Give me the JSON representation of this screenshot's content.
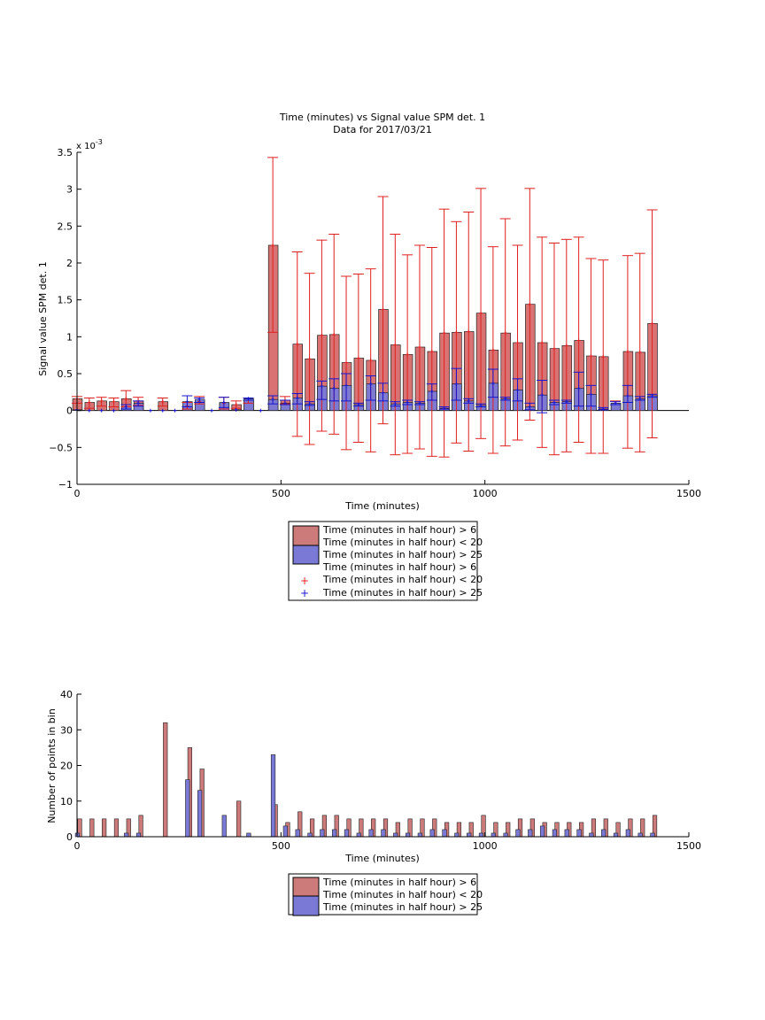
{
  "chart_data": [
    {
      "type": "bar",
      "title": "Time (minutes) vs Signal value SPM det. 1",
      "subtitle": "Data for 2017/03/21",
      "xlabel": "Time (minutes)",
      "ylabel": "Signal value SPM det. 1",
      "exponent_label": "x 10",
      "exponent_power": "-3",
      "xlim": [
        0,
        1500
      ],
      "ylim": [
        -1,
        3.5
      ],
      "xticks": [
        0,
        500,
        1000,
        1500
      ],
      "yticks": [
        -1,
        -0.5,
        0,
        0.5,
        1,
        1.5,
        2,
        2.5,
        3,
        3.5
      ],
      "ytick_labels": [
        "−1",
        "−0.5",
        "0",
        "0.5",
        "1",
        "1.5",
        "2",
        "2.5",
        "3",
        "3.5"
      ],
      "grid": false,
      "legend_position": "below",
      "legend": [
        "Time (minutes in half hour) > 6",
        "Time (minutes in half hour) < 20",
        "Time (minutes in half hour) > 25",
        "Time (minutes in half hour) > 6",
        "Time (minutes in half hour) < 20",
        "Time (minutes in half hour) > 25"
      ],
      "colors": {
        "red_bar": "#d97373",
        "blue_bar": "#7a7ad6",
        "red_err": "#e02020",
        "blue_err": "#1515d0"
      },
      "series": [
        {
          "color": "red",
          "x": [
            0,
            30,
            60,
            90,
            120,
            150,
            180,
            210,
            240,
            270,
            300,
            330,
            360,
            390,
            420,
            450,
            480,
            510,
            540,
            570,
            600,
            630,
            660,
            690,
            720,
            750,
            780,
            810,
            840,
            870,
            900,
            930,
            960,
            990,
            1020,
            1050,
            1080,
            1110,
            1140,
            1170,
            1200,
            1230,
            1260,
            1290,
            1320,
            1350,
            1380,
            1410
          ],
          "values": [
            0.16,
            0.11,
            0.13,
            0.12,
            0.16,
            0.13,
            null,
            0.12,
            null,
            0.06,
            0.12,
            null,
            0.1,
            0.08,
            0.14,
            null,
            2.24,
            0.14,
            0.9,
            0.7,
            1.02,
            1.03,
            0.65,
            0.71,
            0.68,
            1.37,
            0.89,
            0.76,
            0.86,
            0.8,
            1.05,
            1.06,
            1.07,
            1.32,
            0.82,
            1.05,
            0.92,
            1.44,
            0.92,
            0.84,
            0.88,
            0.95,
            0.74,
            0.73,
            0.1,
            0.8,
            0.79,
            1.18
          ],
          "err_low": [
            0.1,
            0.03,
            0.06,
            0.05,
            0.05,
            0.07,
            null,
            0.06,
            null,
            0.02,
            0.09,
            null,
            0.02,
            0.03,
            0.1,
            null,
            1.06,
            0.09,
            -0.35,
            -0.46,
            -0.28,
            -0.32,
            -0.53,
            -0.43,
            -0.56,
            -0.18,
            -0.6,
            -0.58,
            -0.52,
            -0.62,
            -0.63,
            -0.44,
            -0.55,
            -0.38,
            -0.58,
            -0.48,
            -0.4,
            -0.13,
            -0.5,
            -0.6,
            -0.56,
            -0.43,
            -0.58,
            -0.58,
            0.08,
            -0.51,
            -0.56,
            -0.37
          ],
          "err_high": [
            0.19,
            0.17,
            0.18,
            0.17,
            0.27,
            0.18,
            null,
            0.17,
            null,
            0.11,
            0.19,
            null,
            0.18,
            0.13,
            0.17,
            null,
            3.43,
            0.19,
            2.15,
            1.86,
            2.31,
            2.39,
            1.82,
            1.85,
            1.92,
            2.9,
            2.39,
            2.11,
            2.24,
            2.21,
            2.73,
            2.56,
            2.69,
            3.01,
            2.22,
            2.6,
            2.24,
            3.01,
            2.35,
            2.27,
            2.32,
            2.35,
            2.06,
            2.04,
            0.13,
            2.1,
            2.13,
            2.72
          ]
        },
        {
          "color": "blue",
          "x": [
            15,
            45,
            75,
            105,
            135,
            165,
            195,
            225,
            255,
            285,
            315,
            345,
            375,
            405,
            435,
            465,
            495,
            525,
            555,
            585,
            615,
            645,
            675,
            705,
            735,
            765,
            795,
            825,
            855,
            885,
            915,
            945,
            975,
            1005,
            1035,
            1065,
            1095,
            1125,
            1155,
            1185,
            1215,
            1245,
            1275,
            1305,
            1335,
            1365,
            1395,
            1425
          ],
          "values": [
            0.01,
            0,
            0,
            0,
            0.05,
            0.1,
            0,
            0,
            0,
            0.12,
            0.15,
            0,
            0.11,
            0.01,
            0.16,
            0,
            0.15,
            0.1,
            0.17,
            0.09,
            0.33,
            0.3,
            0.34,
            0.08,
            0.36,
            0.24,
            0.09,
            0.11,
            0.1,
            0.26,
            0.03,
            0.36,
            0.13,
            0.07,
            0.37,
            0.16,
            0.28,
            0.05,
            0.21,
            0.11,
            0.12,
            0.3,
            0.22,
            0.02,
            0.1,
            0.2,
            0.16,
            0.2
          ],
          "err_low": [
            null,
            null,
            null,
            null,
            0.02,
            0.06,
            null,
            null,
            null,
            0.05,
            0.11,
            null,
            0.04,
            null,
            0.14,
            null,
            0.09,
            0.08,
            0.09,
            0.07,
            0.15,
            0.13,
            0.13,
            0.06,
            0.14,
            0.13,
            0.06,
            0.08,
            0.08,
            0.14,
            0.02,
            0.14,
            0.1,
            0.05,
            0.18,
            0.14,
            0.13,
            0.01,
            -0.03,
            0.08,
            0.1,
            0.06,
            0.06,
            0.01,
            0.08,
            0.11,
            0.14,
            0.18
          ],
          "err_high": [
            null,
            null,
            null,
            null,
            0.08,
            0.13,
            null,
            null,
            null,
            0.2,
            0.17,
            null,
            0.18,
            null,
            0.17,
            null,
            0.2,
            0.14,
            0.23,
            0.12,
            0.4,
            0.43,
            0.5,
            0.1,
            0.47,
            0.37,
            0.12,
            0.14,
            0.12,
            0.36,
            0.05,
            0.57,
            0.16,
            0.09,
            0.56,
            0.18,
            0.43,
            0.1,
            0.41,
            0.14,
            0.14,
            0.52,
            0.34,
            0.04,
            0.12,
            0.34,
            0.19,
            0.22
          ]
        }
      ]
    },
    {
      "type": "bar",
      "xlabel": "Time (minutes)",
      "ylabel": "Number of points in bin",
      "xlim": [
        0,
        1500
      ],
      "ylim": [
        0,
        40
      ],
      "xticks": [
        0,
        500,
        1000,
        1500
      ],
      "yticks": [
        0,
        10,
        20,
        30,
        40
      ],
      "grid": false,
      "legend_position": "below",
      "legend": [
        "Time (minutes in half hour) > 6",
        "Time (minutes in half hour) < 20",
        "Time (minutes in half hour) > 25"
      ],
      "series": [
        {
          "color": "red",
          "x": [
            0,
            30,
            60,
            90,
            120,
            150,
            180,
            210,
            240,
            270,
            300,
            330,
            360,
            390,
            420,
            450,
            480,
            510,
            540,
            570,
            600,
            630,
            660,
            690,
            720,
            750,
            780,
            810,
            840,
            870,
            900,
            930,
            960,
            990,
            1020,
            1050,
            1080,
            1110,
            1140,
            1170,
            1200,
            1230,
            1260,
            1290,
            1320,
            1350,
            1380,
            1410
          ],
          "values": [
            5,
            5,
            5,
            5,
            5,
            6,
            0,
            32,
            0,
            25,
            19,
            0,
            0,
            10,
            0,
            0,
            9,
            4,
            7,
            5,
            6,
            6,
            5,
            5,
            5,
            5,
            4,
            5,
            5,
            5,
            4,
            4,
            4,
            6,
            4,
            4,
            5,
            5,
            4,
            4,
            4,
            4,
            5,
            5,
            4,
            5,
            5,
            6
          ]
        },
        {
          "color": "blue",
          "x": [
            15,
            45,
            75,
            105,
            135,
            165,
            195,
            225,
            255,
            285,
            315,
            345,
            375,
            405,
            435,
            465,
            495,
            525,
            555,
            585,
            615,
            645,
            675,
            705,
            735,
            765,
            795,
            825,
            855,
            885,
            915,
            945,
            975,
            1005,
            1035,
            1065,
            1095,
            1125,
            1155,
            1185,
            1215,
            1245,
            1275,
            1305,
            1335,
            1365,
            1395,
            1425
          ],
          "values": [
            1,
            0,
            0,
            0,
            1,
            1,
            0,
            0,
            0,
            16,
            13,
            0,
            6,
            0,
            1,
            0,
            23,
            3,
            2,
            1,
            2,
            2,
            2,
            1,
            2,
            2,
            1,
            1,
            1,
            2,
            2,
            1,
            1,
            1,
            1,
            1,
            2,
            2,
            3,
            2,
            2,
            2,
            1,
            2,
            1,
            2,
            1,
            1
          ]
        }
      ]
    }
  ]
}
